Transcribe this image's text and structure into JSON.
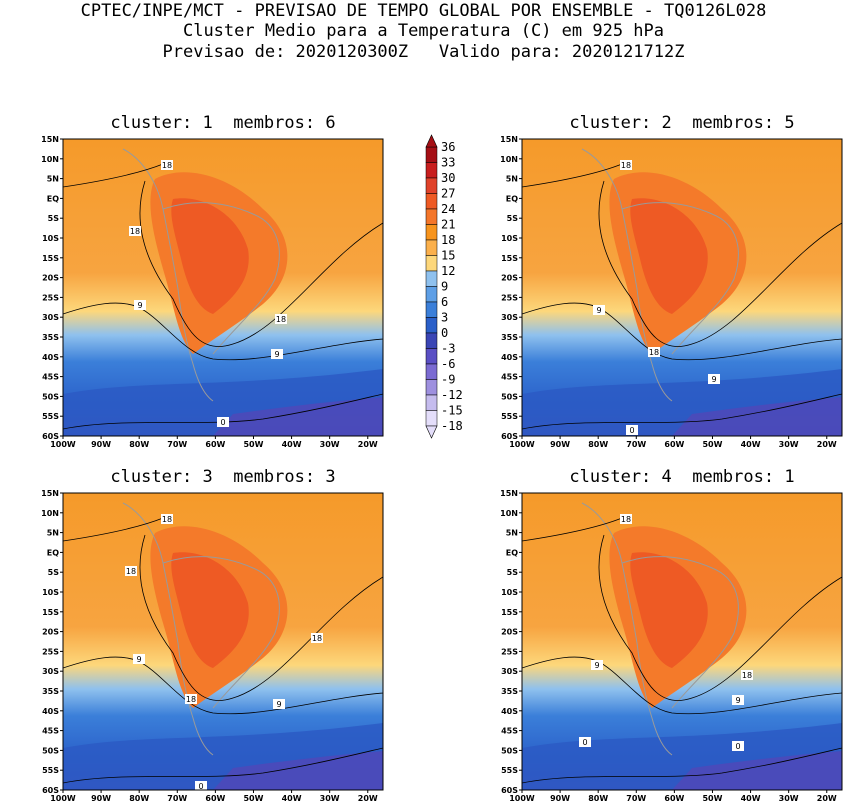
{
  "header": {
    "line1": "CPTEC/INPE/MCT - PREVISAO DE TEMPO GLOBAL POR ENSEMBLE - TQ0126L028",
    "line2": "Cluster Medio para a Temperatura (C) em 925 hPa",
    "line3": "Previsao de: 2020120300Z   Valido para: 2020121712Z"
  },
  "panels": [
    {
      "title": "cluster: 1  membros: 6",
      "contour_labels": [
        "18",
        "18",
        "18",
        "9",
        "9",
        "0"
      ]
    },
    {
      "title": "cluster: 2  membros: 5",
      "contour_labels": [
        "18",
        "9",
        "18",
        "9",
        "0"
      ]
    },
    {
      "title": "cluster: 3  membros: 3",
      "contour_labels": [
        "18",
        "18",
        "18",
        "18",
        "9",
        "9",
        "0"
      ]
    },
    {
      "title": "cluster: 4  membros: 1",
      "contour_labels": [
        "18",
        "9",
        "18",
        "9",
        "0",
        "0"
      ]
    }
  ],
  "axes": {
    "lat_ticks": [
      "15N",
      "10N",
      "5N",
      "EQ",
      "5S",
      "10S",
      "15S",
      "20S",
      "25S",
      "30S",
      "35S",
      "40S",
      "45S",
      "50S",
      "55S",
      "60S"
    ],
    "lon_ticks": [
      "100W",
      "90W",
      "80W",
      "70W",
      "60W",
      "50W",
      "40W",
      "30W",
      "20W"
    ]
  },
  "colorbar": {
    "labels": [
      "36",
      "33",
      "30",
      "27",
      "24",
      "21",
      "18",
      "15",
      "12",
      "9",
      "6",
      "3",
      "0",
      "-3",
      "-6",
      "-9",
      "-12",
      "-15",
      "-18"
    ],
    "colors": [
      "#a50f15",
      "#c81e1e",
      "#e0422a",
      "#ee5a24",
      "#f4762a",
      "#f7941d",
      "#fbb04c",
      "#fdd77b",
      "#8fc1ee",
      "#5e9fe6",
      "#3b7fd9",
      "#2a5fc9",
      "#3a45b5",
      "#5a4fc4",
      "#7b6bd2",
      "#9e90df",
      "#c5bcee",
      "#e4defa"
    ]
  }
}
